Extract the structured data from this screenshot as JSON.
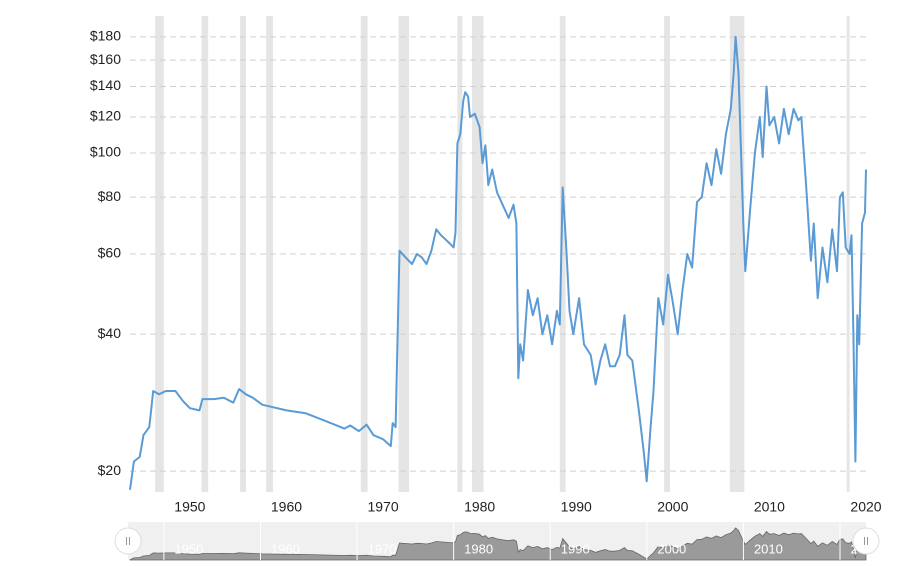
{
  "chart_data": {
    "type": "line",
    "log_scale": true,
    "grid": true,
    "color": "#5b9bd5",
    "xlim": [
      1943.8,
      2020
    ],
    "ylim": [
      18,
      200
    ],
    "xticks": [
      1950,
      1960,
      1970,
      1980,
      1990,
      2000,
      2010,
      2020
    ],
    "yticks": [
      {
        "value": 20,
        "label": "$20"
      },
      {
        "value": 40,
        "label": "$40"
      },
      {
        "value": 60,
        "label": "$60"
      },
      {
        "value": 80,
        "label": "$80"
      },
      {
        "value": 100,
        "label": "$100"
      },
      {
        "value": 120,
        "label": "$120"
      },
      {
        "value": 140,
        "label": "$140"
      },
      {
        "value": 160,
        "label": "$160"
      },
      {
        "value": 180,
        "label": "$180"
      }
    ],
    "recessions": [
      [
        1946.4,
        1947.3
      ],
      [
        1951.2,
        1951.9
      ],
      [
        1955.2,
        1955.8
      ],
      [
        1957.9,
        1958.6
      ],
      [
        1967.7,
        1968.4
      ],
      [
        1971.6,
        1972.7
      ],
      [
        1977.7,
        1978.2
      ],
      [
        1979.2,
        1980.4
      ],
      [
        1988.3,
        1988.9
      ],
      [
        1999.1,
        1999.7
      ],
      [
        2005.9,
        2007.4
      ],
      [
        2018.0,
        2018.3
      ]
    ],
    "x": [
      1943.8,
      1944.2,
      1944.8,
      1945.2,
      1945.8,
      1946.2,
      1946.8,
      1947.5,
      1948.5,
      1949.3,
      1950.0,
      1951.0,
      1951.3,
      1952.5,
      1953.5,
      1954.5,
      1955.1,
      1955.8,
      1956.5,
      1957.5,
      1960,
      1962,
      1964,
      1966,
      1966.6,
      1967.5,
      1968.3,
      1969,
      1970,
      1970.8,
      1971.0,
      1971.3,
      1971.7,
      1972,
      1973,
      1973.5,
      1974,
      1974.5,
      1975,
      1975.5,
      1976,
      1977,
      1977.3,
      1977.5,
      1977.7,
      1978.0,
      1978.3,
      1978.5,
      1978.8,
      1979.0,
      1979.5,
      1980.0,
      1980.3,
      1980.6,
      1980.9,
      1981.3,
      1981.8,
      1982.5,
      1983.0,
      1983.5,
      1983.8,
      1984.0,
      1984.2,
      1984.5,
      1985.0,
      1985.5,
      1986.0,
      1986.5,
      1987,
      1987.5,
      1988,
      1988.3,
      1988.6,
      1989.0,
      1989.3,
      1989.7,
      1990.3,
      1990.8,
      1991.5,
      1992.0,
      1992.5,
      1993.0,
      1993.5,
      1994,
      1994.5,
      1995,
      1995.3,
      1995.8,
      1996.5,
      1997.0,
      1997.3,
      1997.7,
      1998.0,
      1998.5,
      1999.0,
      1999.5,
      2000.0,
      2000.5,
      2001.0,
      2001.5,
      2002.0,
      2002.5,
      2003.0,
      2003.5,
      2004.0,
      2004.5,
      2005.0,
      2005.5,
      2006.0,
      2006.3,
      2006.5,
      2006.8,
      2007.3,
      2007.5,
      2008.0,
      2008.5,
      2009.0,
      2009.3,
      2009.7,
      2010.0,
      2010.5,
      2011.0,
      2011.5,
      2012.0,
      2012.5,
      2013.0,
      2013.3,
      2013.8,
      2014.3,
      2014.6,
      2015.0,
      2015.5,
      2016.0,
      2016.5,
      2017.0,
      2017.3,
      2017.6,
      2017.9,
      2018.3,
      2018.5,
      2018.7,
      2018.9,
      2019.1,
      2019.3,
      2019.6,
      2019.9,
      2020.0
    ],
    "values": [
      18.2,
      21,
      21.5,
      24,
      25,
      30,
      29.5,
      30,
      30,
      28.5,
      27.5,
      27.2,
      28.8,
      28.8,
      29,
      28.3,
      30.3,
      29.5,
      29,
      28,
      27.2,
      26.8,
      25.8,
      24.8,
      25.2,
      24.5,
      25.3,
      24,
      23.5,
      22.7,
      25.5,
      25,
      61,
      60,
      57,
      60,
      59,
      57,
      61,
      68,
      66,
      63,
      62,
      67,
      105,
      110,
      130,
      136,
      133,
      120,
      122,
      114,
      95,
      104,
      85,
      92,
      82,
      76,
      72,
      77,
      70,
      32,
      38,
      35,
      50,
      44,
      48,
      40,
      44,
      38,
      45,
      42,
      84,
      60,
      45,
      40,
      48,
      38,
      36,
      31,
      35,
      38,
      34,
      34,
      36,
      44,
      36,
      35,
      27,
      22,
      19,
      25,
      30,
      48,
      42,
      54,
      47,
      40,
      50,
      60,
      56,
      78,
      80,
      95,
      85,
      102,
      90,
      110,
      125,
      150,
      180,
      150,
      70,
      55,
      75,
      100,
      120,
      98,
      140,
      115,
      120,
      105,
      125,
      110,
      125,
      118,
      120,
      85,
      58,
      70,
      48,
      62,
      52,
      68,
      55,
      80,
      82,
      62,
      60,
      66,
      40,
      21,
      44,
      38,
      70,
      74,
      92
    ]
  }
}
